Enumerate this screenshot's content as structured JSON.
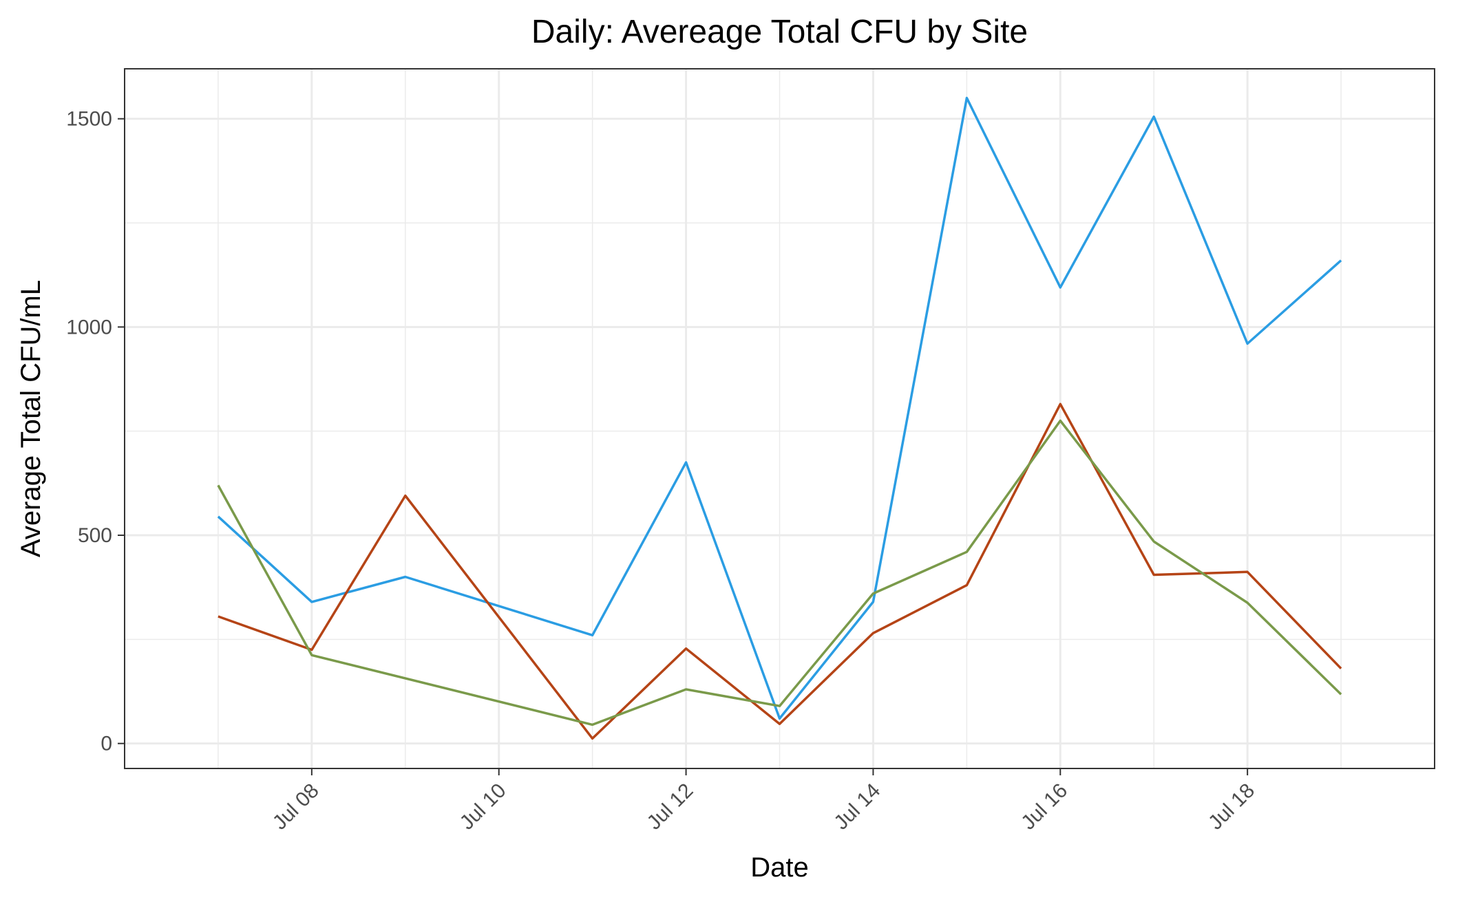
{
  "chart_data": {
    "type": "line",
    "title": "Daily: Avereage Total CFU by Site",
    "xlabel": "Date",
    "ylabel": "Average Total CFU/mL",
    "x": [
      "2024-07-07",
      "2024-07-08",
      "2024-07-09",
      "2024-07-10",
      "2024-07-11",
      "2024-07-12",
      "2024-07-13",
      "2024-07-14",
      "2024-07-15",
      "2024-07-16",
      "2024-07-17",
      "2024-07-18",
      "2024-07-19"
    ],
    "xlim": [
      "2024-07-06",
      "2024-07-20"
    ],
    "ylim": [
      -60,
      1620
    ],
    "x_ticks": [
      {
        "date": "2024-07-08",
        "label": "Jul 08"
      },
      {
        "date": "2024-07-10",
        "label": "Jul 10"
      },
      {
        "date": "2024-07-12",
        "label": "Jul 12"
      },
      {
        "date": "2024-07-14",
        "label": "Jul 14"
      },
      {
        "date": "2024-07-16",
        "label": "Jul 16"
      },
      {
        "date": "2024-07-18",
        "label": "Jul 18"
      }
    ],
    "y_ticks": [
      0,
      500,
      1000,
      1500
    ],
    "y_minor_ticks": [
      250,
      750,
      1250
    ],
    "grid": true,
    "legend": "none",
    "series": [
      {
        "color": "#2b9de3",
        "values": [
          545,
          340,
          400,
          null,
          260,
          675,
          60,
          340,
          1550,
          1095,
          1505,
          960,
          1160
        ]
      },
      {
        "color": "#b54416",
        "values": [
          305,
          225,
          595,
          null,
          12,
          228,
          47,
          265,
          380,
          815,
          405,
          412,
          180
        ]
      },
      {
        "color": "#7a9a4a",
        "values": [
          620,
          212,
          null,
          null,
          45,
          130,
          90,
          360,
          460,
          775,
          485,
          338,
          118
        ]
      }
    ]
  }
}
